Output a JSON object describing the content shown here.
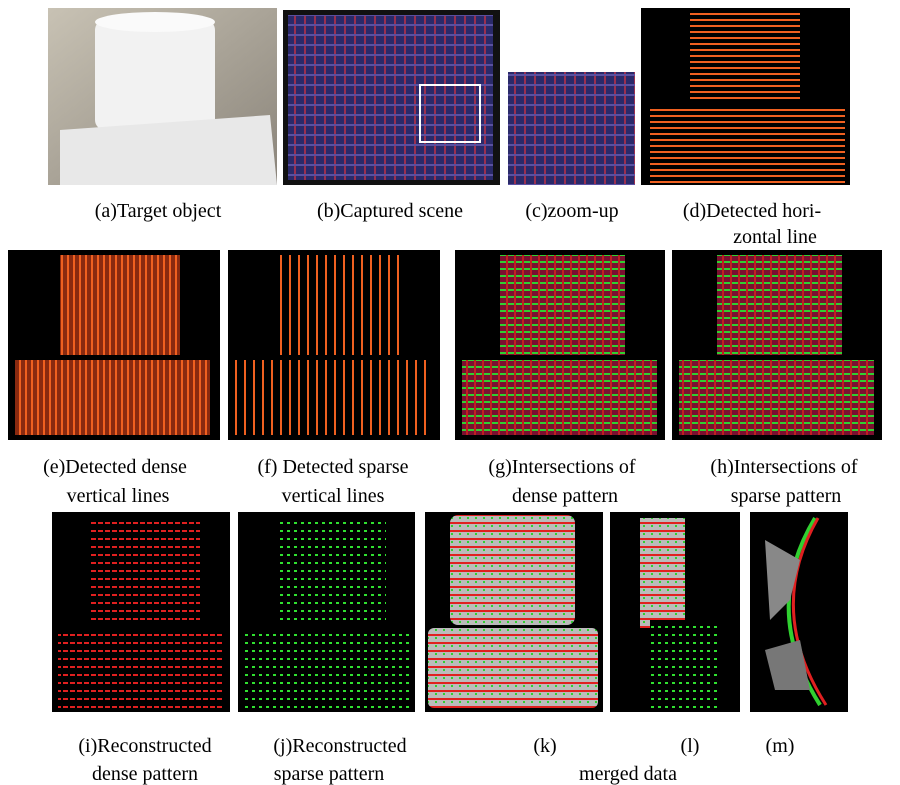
{
  "panels": [
    {
      "label": "(a)Target object"
    },
    {
      "label": "(b)Captured scene"
    },
    {
      "label": "(c)zoom-up"
    },
    {
      "lines": [
        "(d)Detected hori-",
        "zontal line"
      ]
    },
    {
      "lines": [
        "(e)Detected dense",
        "vertical lines"
      ]
    },
    {
      "lines": [
        "(f) Detected sparse",
        "vertical lines"
      ]
    },
    {
      "lines": [
        "(g)Intersections of",
        "dense pattern"
      ]
    },
    {
      "lines": [
        "(h)Intersections of",
        "sparse pattern"
      ]
    },
    {
      "lines": [
        "(i)Reconstructed",
        "dense pattern"
      ]
    },
    {
      "lines": [
        "(j)Reconstructed",
        "sparse pattern"
      ]
    },
    {
      "label": "(k)"
    },
    {
      "label": "(l)"
    },
    {
      "label": "(m)"
    }
  ],
  "group_caption": "merged data"
}
